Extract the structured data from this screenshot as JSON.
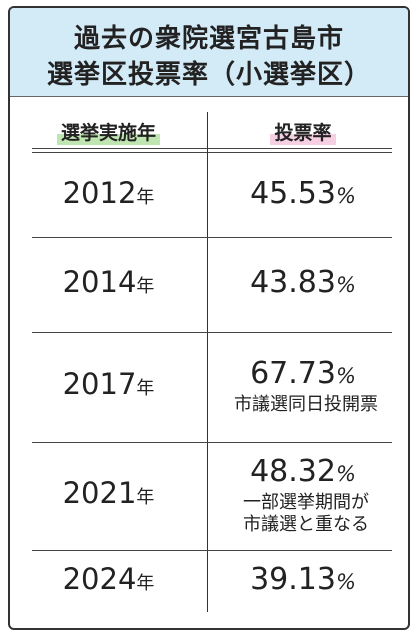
{
  "title": {
    "lines": [
      "過去の衆院選宮古島市",
      "選挙区投票率（小選挙区）"
    ]
  },
  "table": {
    "headers": [
      "選挙実施年",
      "投票率"
    ],
    "rows": [
      {
        "year": "2012",
        "year_unit": "年",
        "rate": "45.53",
        "rate_unit": "%",
        "note": []
      },
      {
        "year": "2014",
        "year_unit": "年",
        "rate": "43.83",
        "rate_unit": "%",
        "note": []
      },
      {
        "year": "2017",
        "year_unit": "年",
        "rate": "67.73",
        "rate_unit": "%",
        "note": [
          "市議選同日投開票"
        ]
      },
      {
        "year": "2021",
        "year_unit": "年",
        "rate": "48.32",
        "rate_unit": "%",
        "note": [
          "一部選挙期間が",
          "市議選と重なる"
        ]
      },
      {
        "year": "2024",
        "year_unit": "年",
        "rate": "39.13",
        "rate_unit": "%",
        "note": []
      }
    ]
  }
}
